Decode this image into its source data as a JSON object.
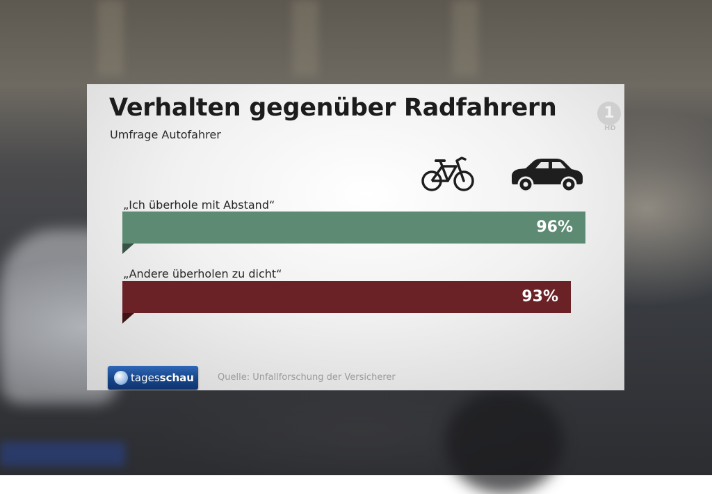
{
  "chart_data": {
    "type": "bar",
    "orientation": "horizontal",
    "title": "Verhalten gegenüber Radfahrern",
    "subtitle": "Umfrage Autofahrer",
    "categories": [
      "„Ich überhole mit Abstand“",
      "„Andere überholen zu dicht“"
    ],
    "values": [
      96,
      93
    ],
    "value_labels": [
      "96%",
      "93%"
    ],
    "unit": "%",
    "xlim": [
      0,
      100
    ],
    "bar_colors": [
      "#5d8a73",
      "#6a2227"
    ],
    "grid": false
  },
  "header_icons": [
    "bicycle-icon",
    "car-icon"
  ],
  "broadcaster": {
    "channel_logo": "1",
    "channel_hd": "HD"
  },
  "footer": {
    "logo_part1": "tages",
    "logo_part2": "schau",
    "source": "Quelle: Unfallforschung der Versicherer"
  }
}
